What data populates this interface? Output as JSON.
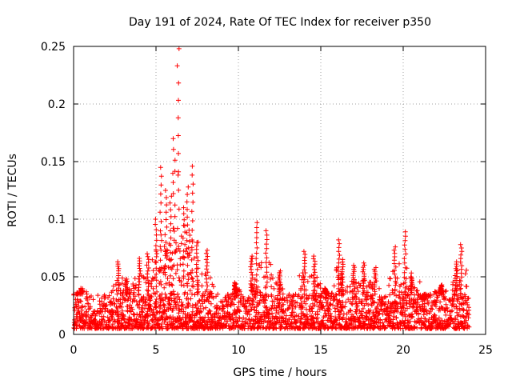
{
  "chart_data": {
    "type": "scatter",
    "title": "Day 191 of 2024, Rate Of TEC Index for receiver p350",
    "xlabel": "GPS time / hours",
    "ylabel": "ROTI / TECUs",
    "xlim": [
      0,
      25
    ],
    "ylim": [
      0,
      0.25
    ],
    "x_ticks": [
      0,
      5,
      10,
      15,
      20,
      25
    ],
    "x_tick_labels": [
      "0",
      "5",
      "10",
      "15",
      "20",
      "25"
    ],
    "y_ticks": [
      0,
      0.05,
      0.1,
      0.15,
      0.2,
      0.25
    ],
    "y_tick_labels": [
      "0",
      "0.05",
      "0.1",
      "0.15",
      "0.2",
      "0.25"
    ],
    "grid": true,
    "marker": "+",
    "marker_color": "#ff0000",
    "series": [
      {
        "name": "ROTI",
        "baseline_band": [
          0.005,
          0.035
        ],
        "peak_events": [
          {
            "x": 0.2,
            "y": 0.035
          },
          {
            "x": 0.5,
            "y": 0.04
          },
          {
            "x": 2.7,
            "y": 0.063
          },
          {
            "x": 3.2,
            "y": 0.048
          },
          {
            "x": 4.0,
            "y": 0.066
          },
          {
            "x": 4.5,
            "y": 0.07
          },
          {
            "x": 5.0,
            "y": 0.1
          },
          {
            "x": 5.3,
            "y": 0.145
          },
          {
            "x": 5.6,
            "y": 0.125
          },
          {
            "x": 5.9,
            "y": 0.12
          },
          {
            "x": 6.1,
            "y": 0.17
          },
          {
            "x": 6.35,
            "y": 0.248
          },
          {
            "x": 6.7,
            "y": 0.11
          },
          {
            "x": 6.9,
            "y": 0.128
          },
          {
            "x": 7.2,
            "y": 0.146
          },
          {
            "x": 7.5,
            "y": 0.08
          },
          {
            "x": 8.1,
            "y": 0.073
          },
          {
            "x": 9.8,
            "y": 0.045
          },
          {
            "x": 10.8,
            "y": 0.068
          },
          {
            "x": 11.1,
            "y": 0.097
          },
          {
            "x": 11.7,
            "y": 0.09
          },
          {
            "x": 12.5,
            "y": 0.055
          },
          {
            "x": 14.0,
            "y": 0.072
          },
          {
            "x": 14.6,
            "y": 0.068
          },
          {
            "x": 15.3,
            "y": 0.04
          },
          {
            "x": 16.1,
            "y": 0.082
          },
          {
            "x": 16.3,
            "y": 0.065
          },
          {
            "x": 17.0,
            "y": 0.06
          },
          {
            "x": 17.6,
            "y": 0.062
          },
          {
            "x": 18.3,
            "y": 0.058
          },
          {
            "x": 19.5,
            "y": 0.076
          },
          {
            "x": 20.1,
            "y": 0.089
          },
          {
            "x": 20.5,
            "y": 0.05
          },
          {
            "x": 21.3,
            "y": 0.03
          },
          {
            "x": 22.3,
            "y": 0.043
          },
          {
            "x": 23.2,
            "y": 0.063
          },
          {
            "x": 23.5,
            "y": 0.078
          }
        ]
      }
    ]
  }
}
